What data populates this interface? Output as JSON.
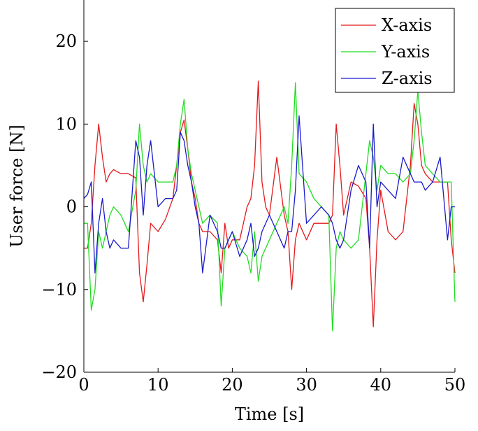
{
  "chart_data": {
    "type": "line",
    "xlabel": "Time [s]",
    "ylabel": "User force [N]",
    "xlim": [
      0,
      50
    ],
    "ylim": [
      -20,
      25
    ],
    "xticks": [
      0,
      10,
      20,
      30,
      40,
      50
    ],
    "yticks": [
      -20,
      -10,
      0,
      10,
      20
    ],
    "xtick_labels": [
      "0",
      "10",
      "20",
      "30",
      "40",
      "50"
    ],
    "ytick_labels": [
      "−20",
      "−10",
      "0",
      "10",
      "20"
    ],
    "grid": false,
    "legend_position": "top-right",
    "series": [
      {
        "name": "X-axis",
        "color": "#e41a1c",
        "x": [
          0,
          0.5,
          1,
          1.5,
          2,
          2.5,
          3,
          3.5,
          4,
          5,
          6,
          7,
          7.5,
          8,
          8.5,
          9,
          10,
          11,
          12,
          12.5,
          13,
          13.5,
          14,
          14.5,
          15,
          15.5,
          16,
          17,
          18,
          18.5,
          19,
          19.5,
          20,
          21,
          22,
          22.5,
          23,
          23.5,
          24,
          24.5,
          25,
          26,
          27,
          27.5,
          28,
          28.5,
          29,
          30,
          31,
          32,
          33,
          33.5,
          34,
          34.5,
          35,
          36,
          37,
          38,
          38.5,
          39,
          39.5,
          40,
          41,
          42,
          43,
          44,
          44.5,
          45,
          45.5,
          46,
          47,
          48,
          49,
          49.5,
          50
        ],
        "y": [
          -5,
          -5,
          -2,
          5,
          10,
          6,
          3,
          4,
          4.5,
          4,
          4,
          3.5,
          -8,
          -11.5,
          -7,
          -2,
          -3,
          -1.5,
          1,
          5,
          9,
          10.5,
          7,
          3,
          1,
          -2,
          -3,
          -3,
          -4,
          -8,
          -2,
          -5,
          -4,
          -4,
          0,
          1,
          5,
          15.2,
          3,
          0,
          -1,
          6,
          -1,
          -3,
          -10,
          -4,
          -2,
          -4,
          -2,
          -2,
          -2,
          -1,
          10,
          5,
          -1,
          3,
          2.5,
          1,
          -5,
          -14.5,
          -4,
          2,
          -3,
          -4,
          -3,
          5,
          12.5,
          10,
          5,
          4,
          3,
          3,
          3,
          -4,
          -8
        ]
      },
      {
        "name": "Y-axis",
        "color": "#22dd22",
        "x": [
          0,
          0.5,
          1,
          1.5,
          2,
          2.5,
          3,
          3.5,
          4,
          5,
          6,
          7,
          7.5,
          8,
          8.5,
          9,
          10,
          11,
          12,
          12.5,
          13,
          13.5,
          14,
          14.5,
          15,
          15.5,
          16,
          17,
          18,
          18.5,
          19,
          19.5,
          20,
          21,
          22,
          22.5,
          23,
          23.5,
          24,
          25,
          26,
          27,
          27.5,
          28,
          28.5,
          29,
          30,
          31,
          32,
          33,
          33.5,
          34,
          34.5,
          35,
          36,
          37,
          38,
          38.5,
          39,
          39.5,
          40,
          41,
          42,
          43,
          44,
          44.5,
          45,
          45.5,
          46,
          47,
          48,
          49,
          49.5,
          50
        ],
        "y": [
          -2,
          -2,
          -12.5,
          -10,
          -3,
          -5,
          -3,
          -1,
          0,
          -1,
          -3,
          2,
          10,
          5,
          3,
          4,
          3,
          3,
          3,
          5,
          10,
          13,
          7,
          4,
          2,
          0,
          -2,
          -1,
          -2,
          -12,
          -5,
          -4,
          -3,
          -5,
          -6,
          -8,
          -3,
          -9,
          -6,
          -4,
          -2,
          0,
          -2,
          5,
          15,
          4,
          3,
          1,
          0,
          -1,
          -15,
          -5,
          -3,
          -4,
          -5,
          -4,
          4,
          8,
          6,
          2,
          5,
          4,
          4,
          3,
          4,
          8,
          14,
          9,
          5,
          4,
          3,
          3,
          3,
          -11.5
        ]
      },
      {
        "name": "Z-axis",
        "color": "#1a1acc",
        "x": [
          0,
          0.5,
          1,
          1.5,
          2,
          2.5,
          3,
          3.5,
          4,
          5,
          6,
          7,
          7.5,
          8,
          8.5,
          9,
          10,
          11,
          12,
          12.5,
          13,
          13.5,
          14,
          14.5,
          15,
          15.5,
          16,
          17,
          18,
          18.5,
          19,
          19.5,
          20,
          21,
          22,
          22.5,
          23,
          23.5,
          24,
          25,
          26,
          27,
          27.5,
          28,
          28.5,
          29,
          30,
          31,
          32,
          33,
          33.5,
          34,
          34.5,
          35,
          36,
          37,
          38,
          38.5,
          39,
          39.5,
          40,
          41,
          42,
          43,
          44,
          44.5,
          45,
          45.5,
          46,
          47,
          48,
          49,
          49.5,
          50
        ],
        "y": [
          1,
          1.5,
          3,
          -8,
          -2,
          1,
          -3,
          -5,
          -4,
          -5,
          -5,
          8,
          6,
          -1,
          5,
          8,
          0,
          1,
          1,
          2,
          9,
          8,
          5,
          3,
          0,
          -2,
          -8,
          -1,
          -3,
          -5,
          -5,
          -4,
          -3,
          -6,
          -4,
          -2,
          -6,
          -5,
          -3,
          -1,
          -3,
          -5,
          -3,
          -3,
          2,
          11,
          -2,
          -1,
          0,
          -1,
          -2,
          -4,
          -5,
          -4,
          2,
          5,
          3,
          -5,
          10,
          0,
          3,
          2,
          1,
          6,
          4,
          3,
          3,
          3,
          2,
          3,
          6,
          -4,
          0,
          0
        ]
      }
    ]
  }
}
